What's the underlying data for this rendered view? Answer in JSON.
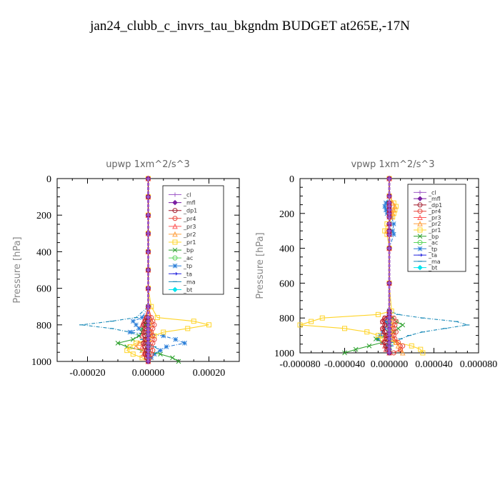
{
  "figure_title": "jan24_clubb_c_invrs_tau_bkgndm  BUDGET at265E,-17N",
  "legend_labels": [
    "_cl",
    "_mfl",
    "_dp1",
    "_pr4",
    "_pr3",
    "_pr2",
    "_pr1",
    "_bp",
    "_ac",
    "_tp",
    "_ta",
    "_ma",
    "_bt"
  ],
  "colors": {
    "_cl": "#a05cc8",
    "_mfl": "#7a1fa2",
    "_dp1": "#a0182a",
    "_pr4": "#e8443a",
    "_pr3": "#ff5a5a",
    "_pr2": "#ffa040",
    "_pr1": "#ffd428",
    "_bp": "#2ca02c",
    "_ac": "#5cd65c",
    "_tp": "#2a7ed8",
    "_ta": "#2222dd",
    "_ma": "#1a8ab8",
    "_bt": "#00e5ee"
  },
  "chart_data": [
    {
      "type": "line",
      "title": "upwp   1xm^2/s^3",
      "ylabel": "Pressure  [hPa]",
      "xlim": [
        -0.0003,
        0.0003
      ],
      "ylim": [
        1000,
        0
      ],
      "xticks": [
        "-0.00020",
        "0.00000",
        "0.00020"
      ],
      "xtick_values": [
        -0.0002,
        0,
        0.0002
      ],
      "yticks": [
        "0",
        "200",
        "400",
        "600",
        "800",
        "1000"
      ],
      "ytick_values": [
        0,
        200,
        400,
        600,
        800,
        1000
      ],
      "grid": false,
      "legend_position": "top-right",
      "pressure_levels": [
        0,
        100,
        200,
        300,
        400,
        500,
        600,
        700,
        760,
        780,
        800,
        820,
        840,
        860,
        880,
        900,
        920,
        940,
        960,
        980,
        1000
      ],
      "series": [
        {
          "name": "_cl",
          "x": [
            0,
            0,
            0,
            0,
            0,
            0,
            0,
            0,
            0,
            0,
            0,
            0,
            0,
            0,
            0,
            0,
            0,
            0,
            0,
            0,
            0
          ]
        },
        {
          "name": "_mfl",
          "x": [
            0,
            0,
            0,
            0,
            0,
            0,
            0,
            0,
            0,
            0,
            0,
            0,
            0,
            0,
            0,
            0,
            0,
            0,
            0,
            0,
            0
          ]
        },
        {
          "name": "_dp1",
          "x": [
            0,
            0,
            0,
            0,
            0,
            0,
            0,
            0,
            -5e-06,
            -1e-05,
            -1.5e-05,
            -1e-05,
            -1.5e-05,
            -1e-05,
            -1e-05,
            -1.5e-05,
            -1e-05,
            -5e-06,
            -1e-05,
            -5e-06,
            0
          ]
        },
        {
          "name": "_pr4",
          "x": [
            0,
            0,
            0,
            0,
            0,
            0,
            0,
            0,
            1e-05,
            1.5e-05,
            2e-05,
            1.5e-05,
            1e-05,
            1.5e-05,
            2e-05,
            1.5e-05,
            1e-05,
            1.5e-05,
            1e-05,
            5e-06,
            0
          ]
        },
        {
          "name": "_pr3",
          "x": [
            0,
            0,
            0,
            0,
            0,
            0,
            0,
            0,
            -1e-05,
            -1.5e-05,
            -2e-05,
            -1e-05,
            -1.5e-05,
            -2e-05,
            -1e-05,
            -1.5e-05,
            -2e-05,
            -1e-05,
            -1.5e-05,
            -5e-06,
            0
          ]
        },
        {
          "name": "_pr2",
          "x": [
            0,
            0,
            0,
            0,
            0,
            0,
            0,
            0,
            5e-06,
            1e-05,
            1e-05,
            5e-06,
            1e-05,
            1e-05,
            5e-06,
            -3e-05,
            -4e-05,
            -2e-05,
            -1e-05,
            -5e-06,
            0
          ]
        },
        {
          "name": "_pr1",
          "x": [
            0,
            0,
            0,
            0,
            0,
            0,
            0,
            1e-05,
            3e-05,
            0.00015,
            0.0002,
            0.00013,
            5e-05,
            2e-05,
            0,
            -4e-05,
            -6e-05,
            -7e-05,
            -5e-05,
            -2e-05,
            0
          ]
        },
        {
          "name": "_bp",
          "x": [
            0,
            0,
            0,
            0,
            0,
            0,
            0,
            0,
            -5e-06,
            -1e-05,
            -1e-05,
            -2e-05,
            -2e-05,
            -3e-05,
            -5e-05,
            -0.0001,
            -7e-05,
            -2e-05,
            4e-05,
            8e-05,
            0.0001
          ]
        },
        {
          "name": "_ac",
          "x": [
            0,
            0,
            0,
            0,
            0,
            0,
            0,
            0,
            0,
            0,
            0,
            0,
            0,
            0,
            0,
            0,
            0,
            0,
            0,
            0,
            0
          ]
        },
        {
          "name": "_tp",
          "x": [
            0,
            0,
            0,
            0,
            0,
            0,
            0,
            0,
            -2e-05,
            -5e-05,
            -4e-05,
            -3e-05,
            -6e-05,
            5e-05,
            9e-05,
            0.00012,
            6e-05,
            4e-05,
            2e-05,
            1e-05,
            0
          ]
        },
        {
          "name": "_ta",
          "x": [
            0,
            0,
            0,
            0,
            0,
            0,
            0,
            0,
            0,
            0,
            0,
            0,
            0,
            0,
            0,
            0,
            0,
            0,
            0,
            0,
            0
          ]
        },
        {
          "name": "_ma",
          "x": [
            0,
            0,
            0,
            0,
            0,
            0,
            0,
            0,
            -4e-05,
            -0.00012,
            -0.00022,
            -0.00012,
            -6e-05,
            -3e-05,
            -2e-05,
            -1e-05,
            2e-05,
            4e-05,
            2e-05,
            1e-05,
            0
          ]
        },
        {
          "name": "_bt",
          "x": [
            0,
            0,
            0,
            0,
            0,
            0,
            0,
            0,
            0,
            0,
            0,
            0,
            0,
            0,
            0,
            0,
            0,
            0,
            0,
            0,
            0
          ]
        }
      ]
    },
    {
      "type": "line",
      "title": "vpwp   1xm^2/s^3",
      "ylabel": "Pressure  [hPa]",
      "xlim": [
        -8e-05,
        8e-05
      ],
      "ylim": [
        1000,
        0
      ],
      "xticks": [
        "-0.000080",
        "-0.000040",
        "0.000000",
        "0.000040",
        "0.000080"
      ],
      "xtick_values": [
        -8e-05,
        -4e-05,
        0,
        4e-05,
        8e-05
      ],
      "yticks": [
        "0",
        "200",
        "400",
        "600",
        "800",
        "1000"
      ],
      "ytick_values": [
        0,
        200,
        400,
        600,
        800,
        1000
      ],
      "grid": false,
      "legend_position": "top-right",
      "pressure_levels": [
        0,
        100,
        140,
        160,
        180,
        200,
        220,
        260,
        300,
        320,
        400,
        600,
        760,
        780,
        800,
        820,
        840,
        860,
        880,
        900,
        920,
        940,
        960,
        980,
        1000
      ],
      "series": [
        {
          "name": "_cl",
          "x": [
            0,
            0,
            0,
            0,
            0,
            0,
            0,
            0,
            0,
            0,
            0,
            0,
            0,
            0,
            0,
            0,
            0,
            0,
            0,
            0,
            0,
            0,
            0,
            0,
            0
          ]
        },
        {
          "name": "_mfl",
          "x": [
            0,
            0,
            0,
            0,
            0,
            0,
            0,
            0,
            0,
            0,
            0,
            0,
            0,
            0,
            0,
            0,
            0,
            0,
            0,
            0,
            0,
            0,
            0,
            0,
            0
          ]
        },
        {
          "name": "_dp1",
          "x": [
            0,
            0,
            0,
            0,
            0,
            0,
            0,
            0,
            0,
            0,
            0,
            0,
            0,
            0,
            -4e-06,
            -6e-06,
            -4e-06,
            -6e-06,
            -4e-06,
            -3e-06,
            -2e-06,
            -4e-06,
            -3e-06,
            -2e-06,
            0
          ]
        },
        {
          "name": "_pr4",
          "x": [
            0,
            0,
            0,
            0,
            0,
            0,
            0,
            0,
            0,
            0,
            0,
            0,
            0,
            0,
            4e-06,
            6e-06,
            5e-06,
            4e-06,
            6e-06,
            4e-06,
            5e-06,
            8e-06,
            1.2e-05,
            1e-05,
            4e-06
          ]
        },
        {
          "name": "_pr3",
          "x": [
            0,
            0,
            0,
            0,
            0,
            0,
            0,
            0,
            0,
            0,
            0,
            0,
            0,
            0,
            -5e-06,
            -6e-06,
            -4e-06,
            -6e-06,
            -5e-06,
            -3e-06,
            -4e-06,
            -6e-06,
            -4e-06,
            -3e-06,
            0
          ]
        },
        {
          "name": "_pr2",
          "x": [
            0,
            0,
            3e-06,
            5e-06,
            4e-06,
            3e-06,
            2e-06,
            0,
            -2e-06,
            0,
            0,
            0,
            0,
            0,
            0,
            2e-06,
            3e-06,
            2e-06,
            3e-06,
            2e-06,
            4e-06,
            6e-06,
            8e-06,
            1e-05,
            1.2e-05
          ]
        },
        {
          "name": "_pr1",
          "x": [
            0,
            0,
            4e-06,
            6e-06,
            5e-06,
            4e-06,
            3e-06,
            -2e-06,
            -4e-06,
            -2e-06,
            0,
            0,
            2e-06,
            -1e-05,
            -6e-05,
            -7e-05,
            -8e-05,
            -4e-05,
            -2e-05,
            -1e-05,
            -6e-06,
            6e-06,
            2e-05,
            2.8e-05,
            3e-05
          ]
        },
        {
          "name": "_bp",
          "x": [
            0,
            0,
            0,
            0,
            0,
            0,
            0,
            0,
            0,
            0,
            0,
            0,
            0,
            0,
            3e-06,
            6e-06,
            1.2e-05,
            8e-06,
            4e-06,
            -4e-06,
            -1.2e-05,
            -6e-06,
            -1.8e-05,
            -3e-05,
            -4e-05
          ]
        },
        {
          "name": "_ac",
          "x": [
            0,
            0,
            0,
            0,
            0,
            0,
            0,
            0,
            0,
            0,
            0,
            0,
            0,
            0,
            0,
            0,
            0,
            0,
            0,
            0,
            0,
            0,
            0,
            0,
            0
          ]
        },
        {
          "name": "_tp",
          "x": [
            0,
            0,
            -3e-06,
            -4e-06,
            -3e-06,
            -2e-06,
            2e-06,
            4e-06,
            3e-06,
            4e-06,
            0,
            0,
            0,
            0,
            -2e-06,
            -3e-06,
            -2e-06,
            -4e-06,
            -6e-06,
            -8e-06,
            -1e-05,
            -6e-06,
            -3e-06,
            -2e-06,
            0
          ]
        },
        {
          "name": "_ta",
          "x": [
            0,
            0,
            0,
            0,
            0,
            0,
            0,
            0,
            0,
            0,
            0,
            0,
            0,
            0,
            0,
            0,
            0,
            0,
            0,
            0,
            0,
            0,
            0,
            0,
            0
          ]
        },
        {
          "name": "_ma",
          "x": [
            0,
            0,
            0,
            0,
            0,
            0,
            0,
            0,
            0,
            0,
            0,
            0,
            0,
            8e-06,
            3e-05,
            6e-05,
            7e-05,
            5e-05,
            3e-05,
            1.8e-05,
            1e-05,
            4e-06,
            2e-06,
            0,
            0
          ]
        },
        {
          "name": "_bt",
          "x": [
            0,
            0,
            0,
            0,
            0,
            0,
            0,
            0,
            0,
            0,
            0,
            0,
            0,
            0,
            0,
            0,
            0,
            0,
            0,
            0,
            0,
            0,
            0,
            0,
            0
          ]
        }
      ]
    }
  ]
}
